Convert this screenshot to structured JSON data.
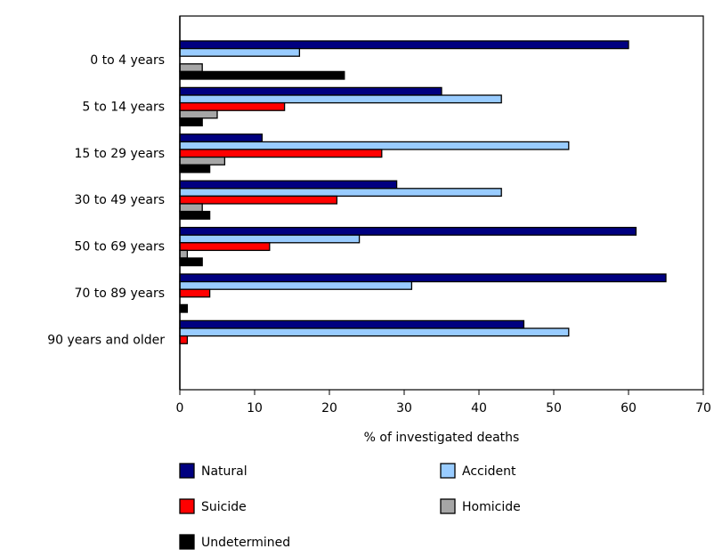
{
  "chart_data": {
    "type": "bar",
    "orientation": "horizontal",
    "categories": [
      "0 to 4 years",
      "5 to 14 years",
      "15 to 29 years",
      "30 to 49 years",
      "50 to 69 years",
      "70 to 89 years",
      "90 years and older"
    ],
    "series": [
      {
        "name": "Natural",
        "color": "#000080",
        "values": [
          60,
          35,
          11,
          29,
          61,
          65,
          46
        ]
      },
      {
        "name": "Accident",
        "color": "#99ccff",
        "values": [
          16,
          43,
          52,
          43,
          24,
          31,
          52
        ]
      },
      {
        "name": "Suicide",
        "color": "#ff0000",
        "values": [
          0,
          14,
          27,
          21,
          12,
          4,
          1
        ]
      },
      {
        "name": "Homicide",
        "color": "#a6a6a6",
        "values": [
          3,
          5,
          6,
          3,
          1,
          0,
          0
        ]
      },
      {
        "name": "Undetermined",
        "color": "#000000",
        "values": [
          22,
          3,
          4,
          4,
          3,
          1,
          0
        ]
      }
    ],
    "xlabel": "% of investigated deaths",
    "xlim": [
      0,
      70
    ],
    "xticks": [
      "0",
      "10",
      "20",
      "30",
      "40",
      "50",
      "60",
      "70"
    ],
    "grid": false,
    "legend_position": "bottom"
  }
}
